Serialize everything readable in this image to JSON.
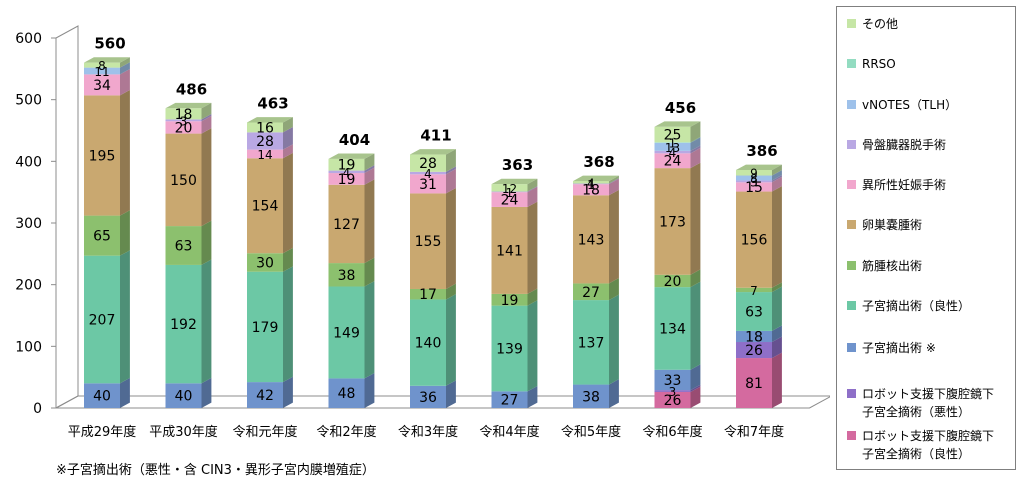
{
  "chart_data": {
    "type": "bar",
    "stacked": true,
    "categories": [
      "平成29年度",
      "平成30年度",
      "令和元年度",
      "令和2年度",
      "令和3年度",
      "令和4年度",
      "令和5年度",
      "令和6年度",
      "令和7年度"
    ],
    "totals": [
      560,
      486,
      463,
      404,
      411,
      363,
      368,
      456,
      386
    ],
    "ylim": [
      0,
      600
    ],
    "yticks": [
      0,
      100,
      200,
      300,
      400,
      500,
      600
    ],
    "series": [
      {
        "name": "ロボット支援下腹腔鏡下\n子宮全摘術（良性）",
        "color": "#d46a9f",
        "values": [
          0,
          0,
          0,
          0,
          0,
          0,
          0,
          26,
          81
        ],
        "labels": [
          "",
          "",
          "",
          "",
          "",
          "",
          "",
          "26",
          "81"
        ]
      },
      {
        "name": "ロボット支援下腹腔鏡下\n子宮全摘術（悪性）",
        "color": "#8e6fc8",
        "values": [
          0,
          0,
          0,
          0,
          0,
          0,
          0,
          3,
          26
        ],
        "labels": [
          "",
          "",
          "",
          "",
          "",
          "",
          "",
          "3",
          "26"
        ]
      },
      {
        "name": "子宮摘出術 ※",
        "color": "#6f93cc",
        "values": [
          40,
          40,
          42,
          48,
          36,
          27,
          38,
          33,
          18
        ],
        "labels": [
          "40",
          "40",
          "42",
          "48",
          "36",
          "27",
          "38",
          "33",
          "18"
        ]
      },
      {
        "name": "子宮摘出術（良性）",
        "color": "#6cc8a5",
        "values": [
          207,
          192,
          179,
          149,
          140,
          139,
          137,
          134,
          63
        ],
        "labels": [
          "207",
          "192",
          "179",
          "149",
          "140",
          "139",
          "137",
          "134",
          "63"
        ]
      },
      {
        "name": "筋腫核出術",
        "color": "#8cc06e",
        "values": [
          65,
          63,
          30,
          38,
          17,
          19,
          27,
          20,
          7
        ],
        "labels": [
          "65",
          "63",
          "30",
          "38",
          "17",
          "19",
          "27",
          "20",
          "7"
        ]
      },
      {
        "name": "卵巣嚢腫術",
        "color": "#c9a870",
        "values": [
          195,
          150,
          154,
          127,
          155,
          141,
          143,
          173,
          156
        ],
        "labels": [
          "195",
          "150",
          "154",
          "127",
          "155",
          "141",
          "143",
          "173",
          "156"
        ]
      },
      {
        "name": "異所性妊娠手術",
        "color": "#f1a7cd",
        "values": [
          34,
          20,
          14,
          19,
          31,
          24,
          18,
          24,
          15
        ],
        "labels": [
          "34",
          "20",
          "14",
          "19",
          "31",
          "24",
          "18",
          "24",
          "15"
        ]
      },
      {
        "name": "骨盤臓器脱手術",
        "color": "#b9a8e3",
        "values": [
          0,
          3,
          28,
          4,
          4,
          1,
          1,
          4,
          3
        ],
        "labels": [
          "",
          "3",
          "28",
          "4",
          "4",
          "1",
          "1",
          "4",
          "3"
        ]
      },
      {
        "name": "vNOTES（TLH）",
        "color": "#9ec1ea",
        "values": [
          11,
          0,
          0,
          0,
          0,
          0,
          0,
          13,
          8
        ],
        "labels": [
          "11",
          "",
          "",
          "",
          "",
          "",
          "",
          "13",
          "8"
        ]
      },
      {
        "name": "RRSO",
        "color": "#93dcc1",
        "values": [
          0,
          0,
          0,
          0,
          0,
          0,
          0,
          1,
          0
        ],
        "labels": [
          "",
          "",
          "",
          "",
          "",
          "",
          "",
          "1",
          ""
        ]
      },
      {
        "name": "その他",
        "color": "#c6e6a6",
        "values": [
          8,
          18,
          16,
          19,
          28,
          12,
          4,
          25,
          9
        ],
        "labels": [
          "8",
          "18",
          "16",
          "19",
          "28",
          "12",
          "4",
          "25",
          "9"
        ]
      }
    ],
    "legend_position": "right",
    "grid": false
  },
  "footnote": "※子宮摘出術（悪性・含 CIN3・異形子宮内膜増殖症）"
}
